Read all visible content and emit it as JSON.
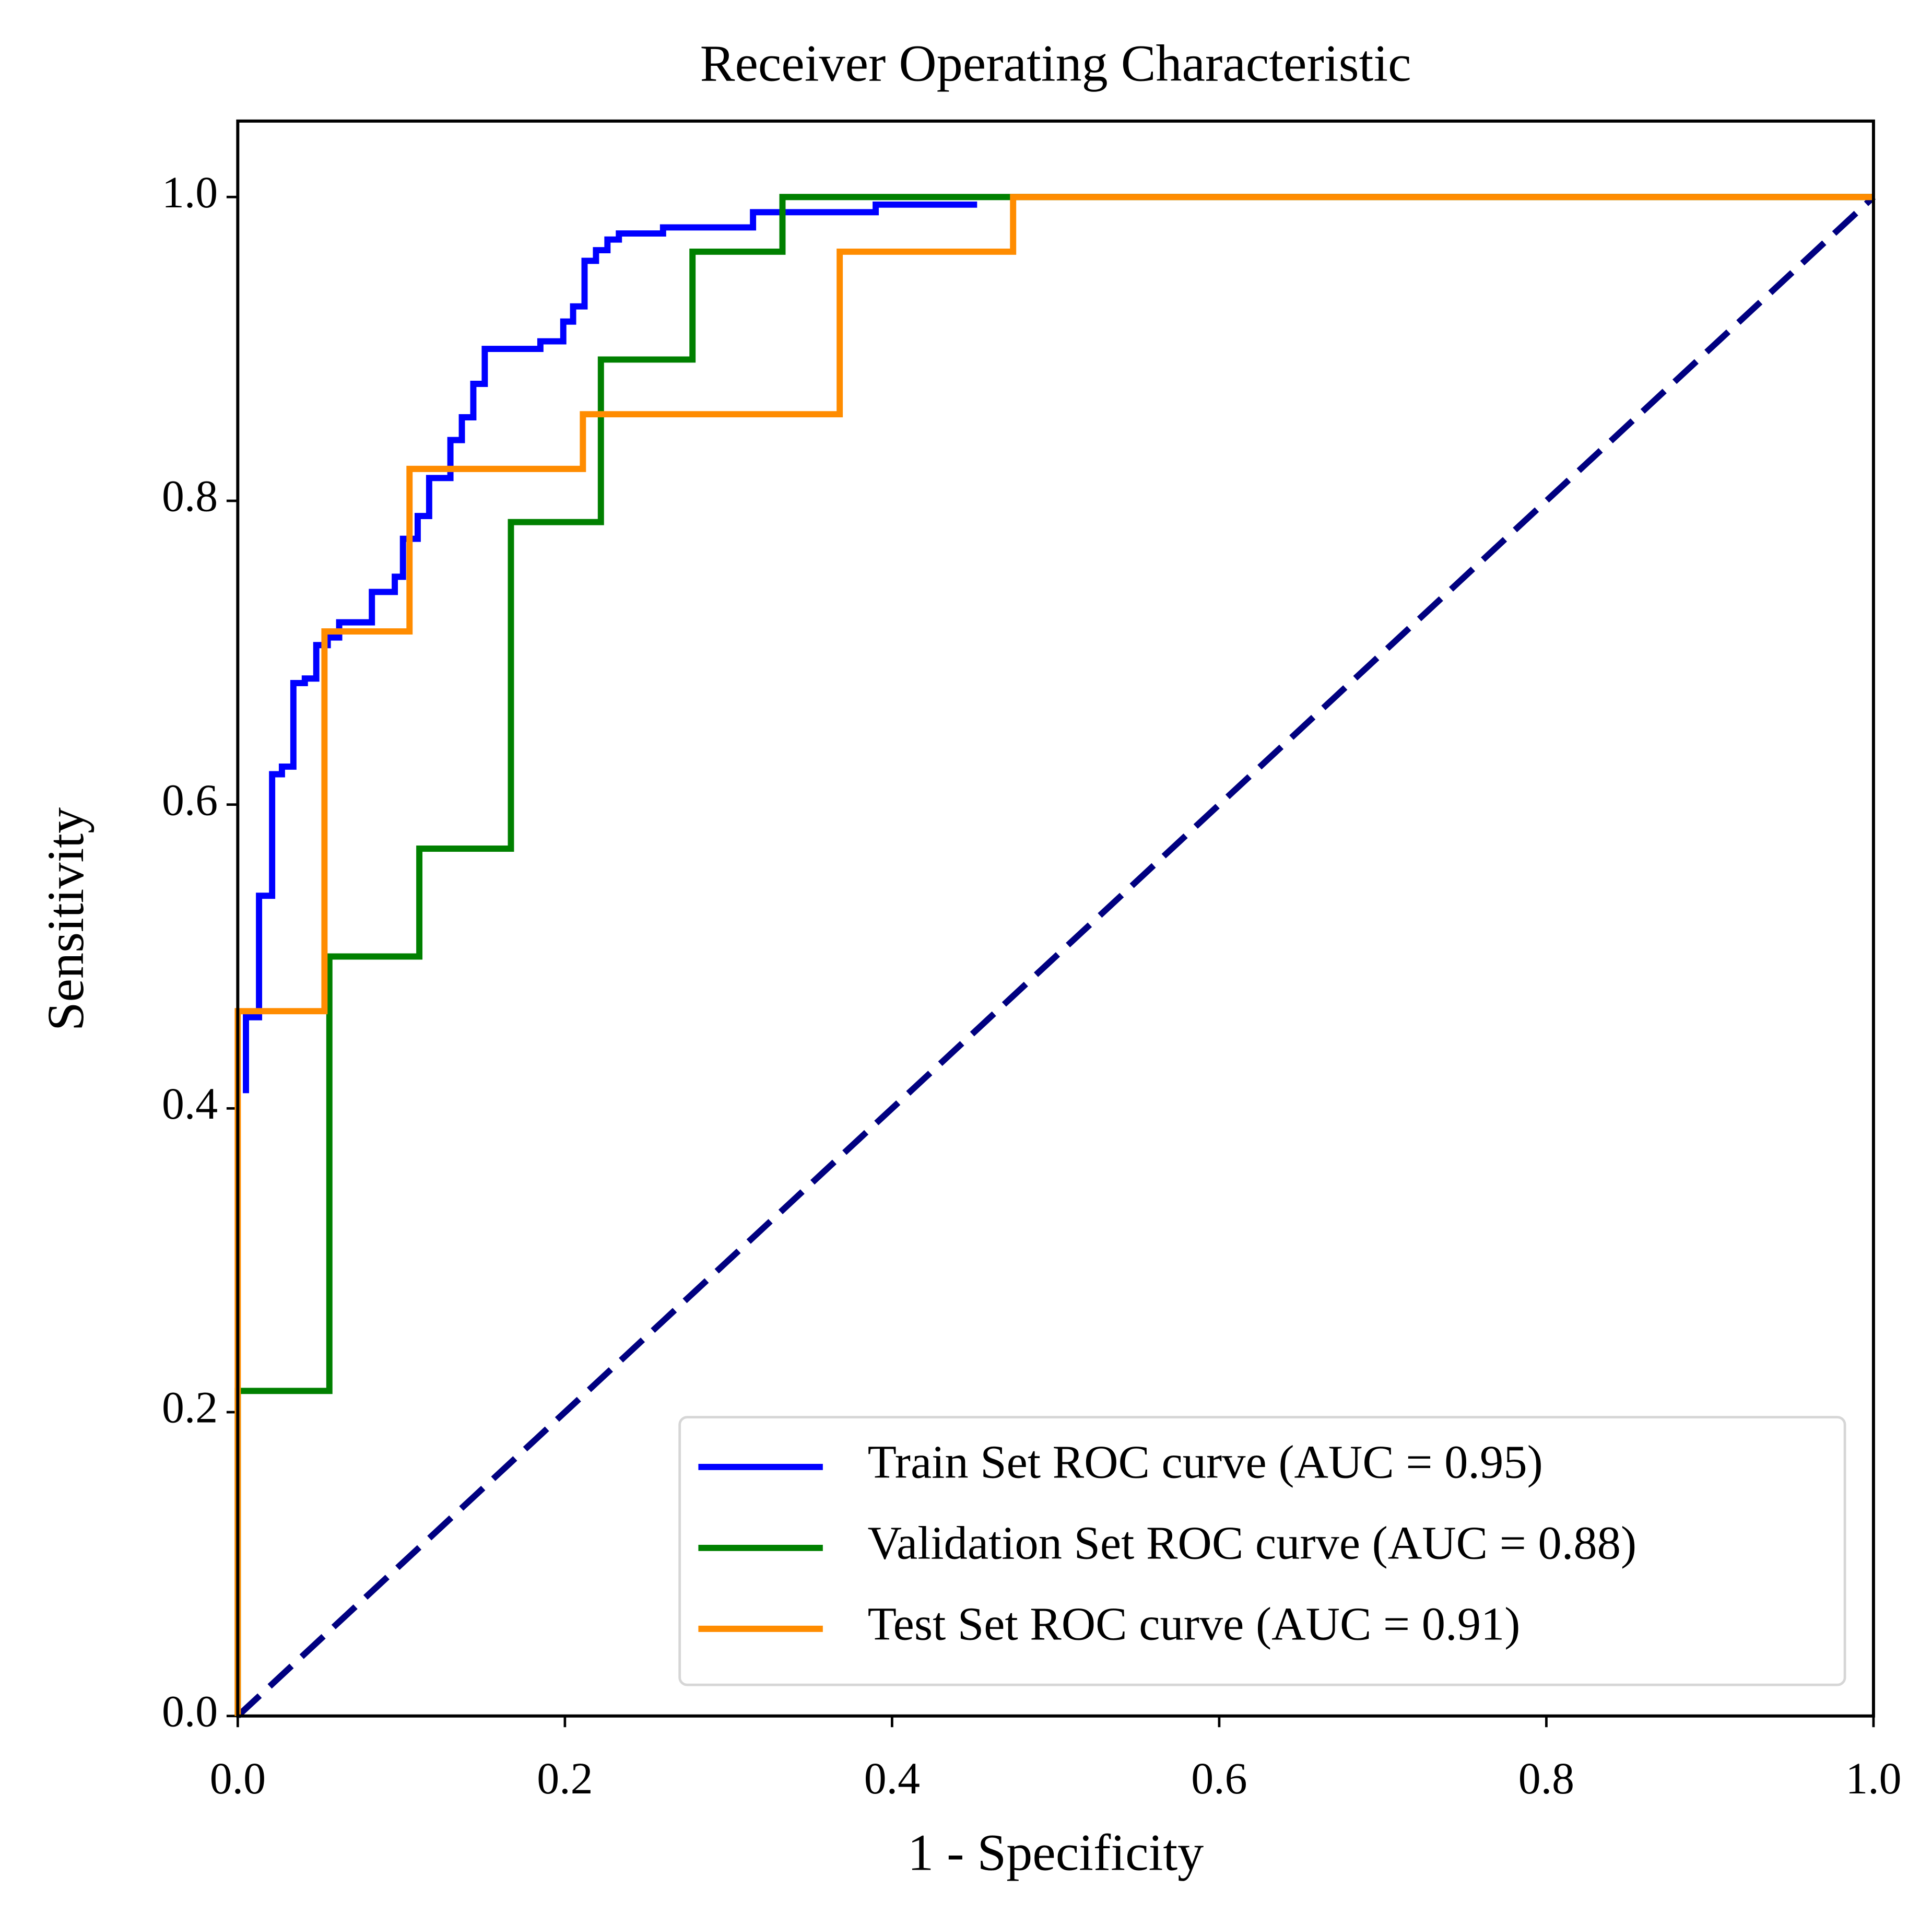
{
  "chart_data": {
    "type": "line",
    "title": "Receiver Operating Characteristic",
    "xlabel": "1 - Specificity",
    "ylabel": "Sensitivity",
    "xlim": [
      0,
      1
    ],
    "ylim": [
      0,
      1.05
    ],
    "xticks": [
      {
        "value": 0,
        "label": "0.0"
      },
      {
        "value": 0.2,
        "label": "0.2"
      },
      {
        "value": 0.4,
        "label": "0.4"
      },
      {
        "value": 0.6,
        "label": "0.6"
      },
      {
        "value": 0.8,
        "label": "0.8"
      },
      {
        "value": 1,
        "label": "1.0"
      }
    ],
    "yticks": [
      {
        "value": 0,
        "label": "0.0"
      },
      {
        "value": 0.2,
        "label": "0.2"
      },
      {
        "value": 0.4,
        "label": "0.4"
      },
      {
        "value": 0.6,
        "label": "0.6"
      },
      {
        "value": 0.8,
        "label": "0.8"
      },
      {
        "value": 1,
        "label": "1.0"
      }
    ],
    "legend": "lower right",
    "series": [
      {
        "name": "Train Set ROC curve (AUC = 0.95)",
        "color": "#0000ff",
        "x": [
          0.005,
          0.005,
          0.013,
          0.013,
          0.021,
          0.021,
          0.027,
          0.027,
          0.034,
          0.034,
          0.041,
          0.041,
          0.048,
          0.048,
          0.055,
          0.055,
          0.062,
          0.062,
          0.082,
          0.082,
          0.096,
          0.096,
          0.101,
          0.101,
          0.11,
          0.11,
          0.117,
          0.117,
          0.13,
          0.13,
          0.137,
          0.137,
          0.144,
          0.144,
          0.151,
          0.151,
          0.185,
          0.185,
          0.199,
          0.199,
          0.205,
          0.205,
          0.212,
          0.212,
          0.219,
          0.219,
          0.226,
          0.226,
          0.233,
          0.233,
          0.26,
          0.26,
          0.315,
          0.315,
          0.39,
          0.39,
          0.452
        ],
        "values": [
          0.41,
          0.46,
          0.46,
          0.54,
          0.54,
          0.62,
          0.62,
          0.625,
          0.625,
          0.68,
          0.68,
          0.683,
          0.683,
          0.705,
          0.705,
          0.71,
          0.71,
          0.72,
          0.72,
          0.74,
          0.74,
          0.75,
          0.75,
          0.775,
          0.775,
          0.79,
          0.79,
          0.815,
          0.815,
          0.84,
          0.84,
          0.855,
          0.855,
          0.877,
          0.877,
          0.9,
          0.9,
          0.905,
          0.905,
          0.918,
          0.918,
          0.928,
          0.928,
          0.958,
          0.958,
          0.965,
          0.965,
          0.972,
          0.972,
          0.976,
          0.976,
          0.98,
          0.98,
          0.99,
          0.99,
          0.995,
          0.995
        ]
      },
      {
        "name": "Validation Set ROC curve (AUC = 0.88)",
        "color": "#008000",
        "x": [
          0,
          0,
          0.056,
          0.056,
          0.111,
          0.111,
          0.167,
          0.167,
          0.222,
          0.222,
          0.278,
          0.278,
          0.333,
          0.333,
          1
        ],
        "values": [
          0,
          0.214,
          0.214,
          0.5,
          0.5,
          0.571,
          0.571,
          0.786,
          0.786,
          0.893,
          0.893,
          0.964,
          0.964,
          1,
          1
        ]
      },
      {
        "name": "Test Set ROC curve (AUC = 0.91)",
        "color": "#ff8c00",
        "x": [
          0,
          0,
          0.053,
          0.053,
          0.105,
          0.105,
          0.211,
          0.211,
          0.368,
          0.368,
          0.474,
          0.474,
          1
        ],
        "values": [
          0,
          0.464,
          0.464,
          0.714,
          0.714,
          0.821,
          0.821,
          0.857,
          0.857,
          0.964,
          0.964,
          1,
          1
        ]
      }
    ],
    "diagonal": {
      "x": [
        0,
        1
      ],
      "values": [
        0,
        1
      ],
      "color": "#000080"
    }
  }
}
